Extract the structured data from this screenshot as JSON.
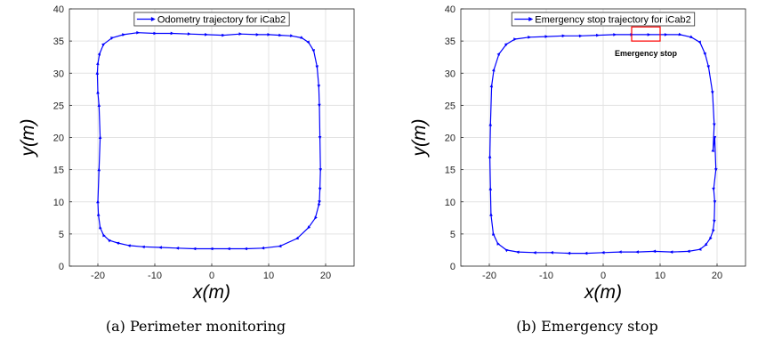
{
  "captions": [
    "(a) Perimeter monitoring",
    "(b) Emergency stop"
  ],
  "chart_data": [
    {
      "type": "line",
      "title": "",
      "xlabel": "x(m)",
      "ylabel": "y(m)",
      "xlim": [
        -25,
        25
      ],
      "ylim": [
        0,
        40
      ],
      "xticks": [
        -20,
        -10,
        0,
        10,
        20
      ],
      "yticks": [
        0,
        5,
        10,
        15,
        20,
        25,
        30,
        35,
        40
      ],
      "grid": true,
      "legend": "top-center",
      "series": [
        {
          "name": "Odometry trajectory for iCab2",
          "color": "#0000ff",
          "x": [
            -20,
            -19.8,
            -19.6,
            -19.8,
            -20.0,
            -20.1,
            -20.0,
            -19.7,
            -19.0,
            -17.5,
            -15.5,
            -13.0,
            -10.0,
            -7.0,
            -4.0,
            -1.0,
            2.0,
            5.0,
            8.0,
            10.0,
            12.0,
            14.0,
            15.8,
            17.0,
            17.9,
            18.5,
            18.8,
            18.9,
            19.0,
            19.1,
            19.0,
            18.9,
            18.8,
            18.2,
            17.0,
            15.0,
            12.0,
            9.0,
            6.0,
            3.0,
            0.0,
            -3.0,
            -6.0,
            -9.0,
            -12.0,
            -14.5,
            -16.5,
            -18.0,
            -19.0,
            -19.6,
            -19.9,
            -20.0
          ],
          "y": [
            10,
            15,
            20,
            25,
            27,
            30,
            31.5,
            33,
            34.5,
            35.5,
            36.0,
            36.3,
            36.2,
            36.2,
            36.1,
            36.0,
            35.9,
            36.1,
            36.0,
            36.0,
            35.9,
            35.8,
            35.5,
            34.8,
            33.5,
            31,
            28,
            25,
            20,
            15,
            12,
            10,
            9.5,
            7.5,
            6.0,
            4.3,
            3.1,
            2.8,
            2.7,
            2.7,
            2.7,
            2.7,
            2.8,
            2.9,
            3.0,
            3.2,
            3.6,
            4.0,
            4.8,
            6.0,
            8.0,
            10
          ]
        }
      ],
      "annotations": []
    },
    {
      "type": "line",
      "title": "",
      "xlabel": "x(m)",
      "ylabel": "y(m)",
      "xlim": [
        -25,
        25
      ],
      "ylim": [
        0,
        40
      ],
      "xticks": [
        -20,
        -10,
        0,
        10,
        20
      ],
      "yticks": [
        0,
        5,
        10,
        15,
        20,
        25,
        30,
        35,
        40
      ],
      "grid": true,
      "legend": "top-center",
      "series": [
        {
          "name": "Emergency stop trajectory for iCab2",
          "color": "#0000ff",
          "x": [
            -19.8,
            -19.6,
            -19.2,
            -18.3,
            -17.0,
            -15.5,
            -13.0,
            -10.0,
            -7.0,
            -4.0,
            -1.0,
            2.0,
            5.0,
            8.0,
            11.0,
            13.5,
            15.5,
            17.0,
            17.9,
            18.5,
            19.2,
            19.5,
            19.3,
            19.6,
            19.8,
            19.4,
            19.6,
            19.5,
            19.3,
            18.8,
            18.0,
            17.0,
            15.0,
            12.0,
            9.0,
            6.0,
            3.0,
            0.0,
            -3.0,
            -6.0,
            -9.0,
            -12.0,
            -15.0,
            -17.0,
            -18.5,
            -19.3,
            -19.7,
            -19.8,
            -19.9,
            -19.8
          ],
          "y": [
            22,
            28,
            30.5,
            33.0,
            34.5,
            35.3,
            35.6,
            35.7,
            35.8,
            35.8,
            35.9,
            36.0,
            36.0,
            36.0,
            36.0,
            36.0,
            35.6,
            34.8,
            33.0,
            31,
            27,
            22,
            18,
            20,
            15,
            12,
            10,
            7,
            5.5,
            4.3,
            3.3,
            2.6,
            2.3,
            2.2,
            2.3,
            2.2,
            2.2,
            2.1,
            2.0,
            2.0,
            2.1,
            2.1,
            2.2,
            2.5,
            3.5,
            5.0,
            8.0,
            12.0,
            17.0,
            22.0
          ]
        }
      ],
      "annotations": [
        {
          "text": "Emergency stop",
          "box_x": [
            5,
            10
          ],
          "box_y": [
            35,
            37.2
          ],
          "color": "#ff0000"
        }
      ]
    }
  ]
}
